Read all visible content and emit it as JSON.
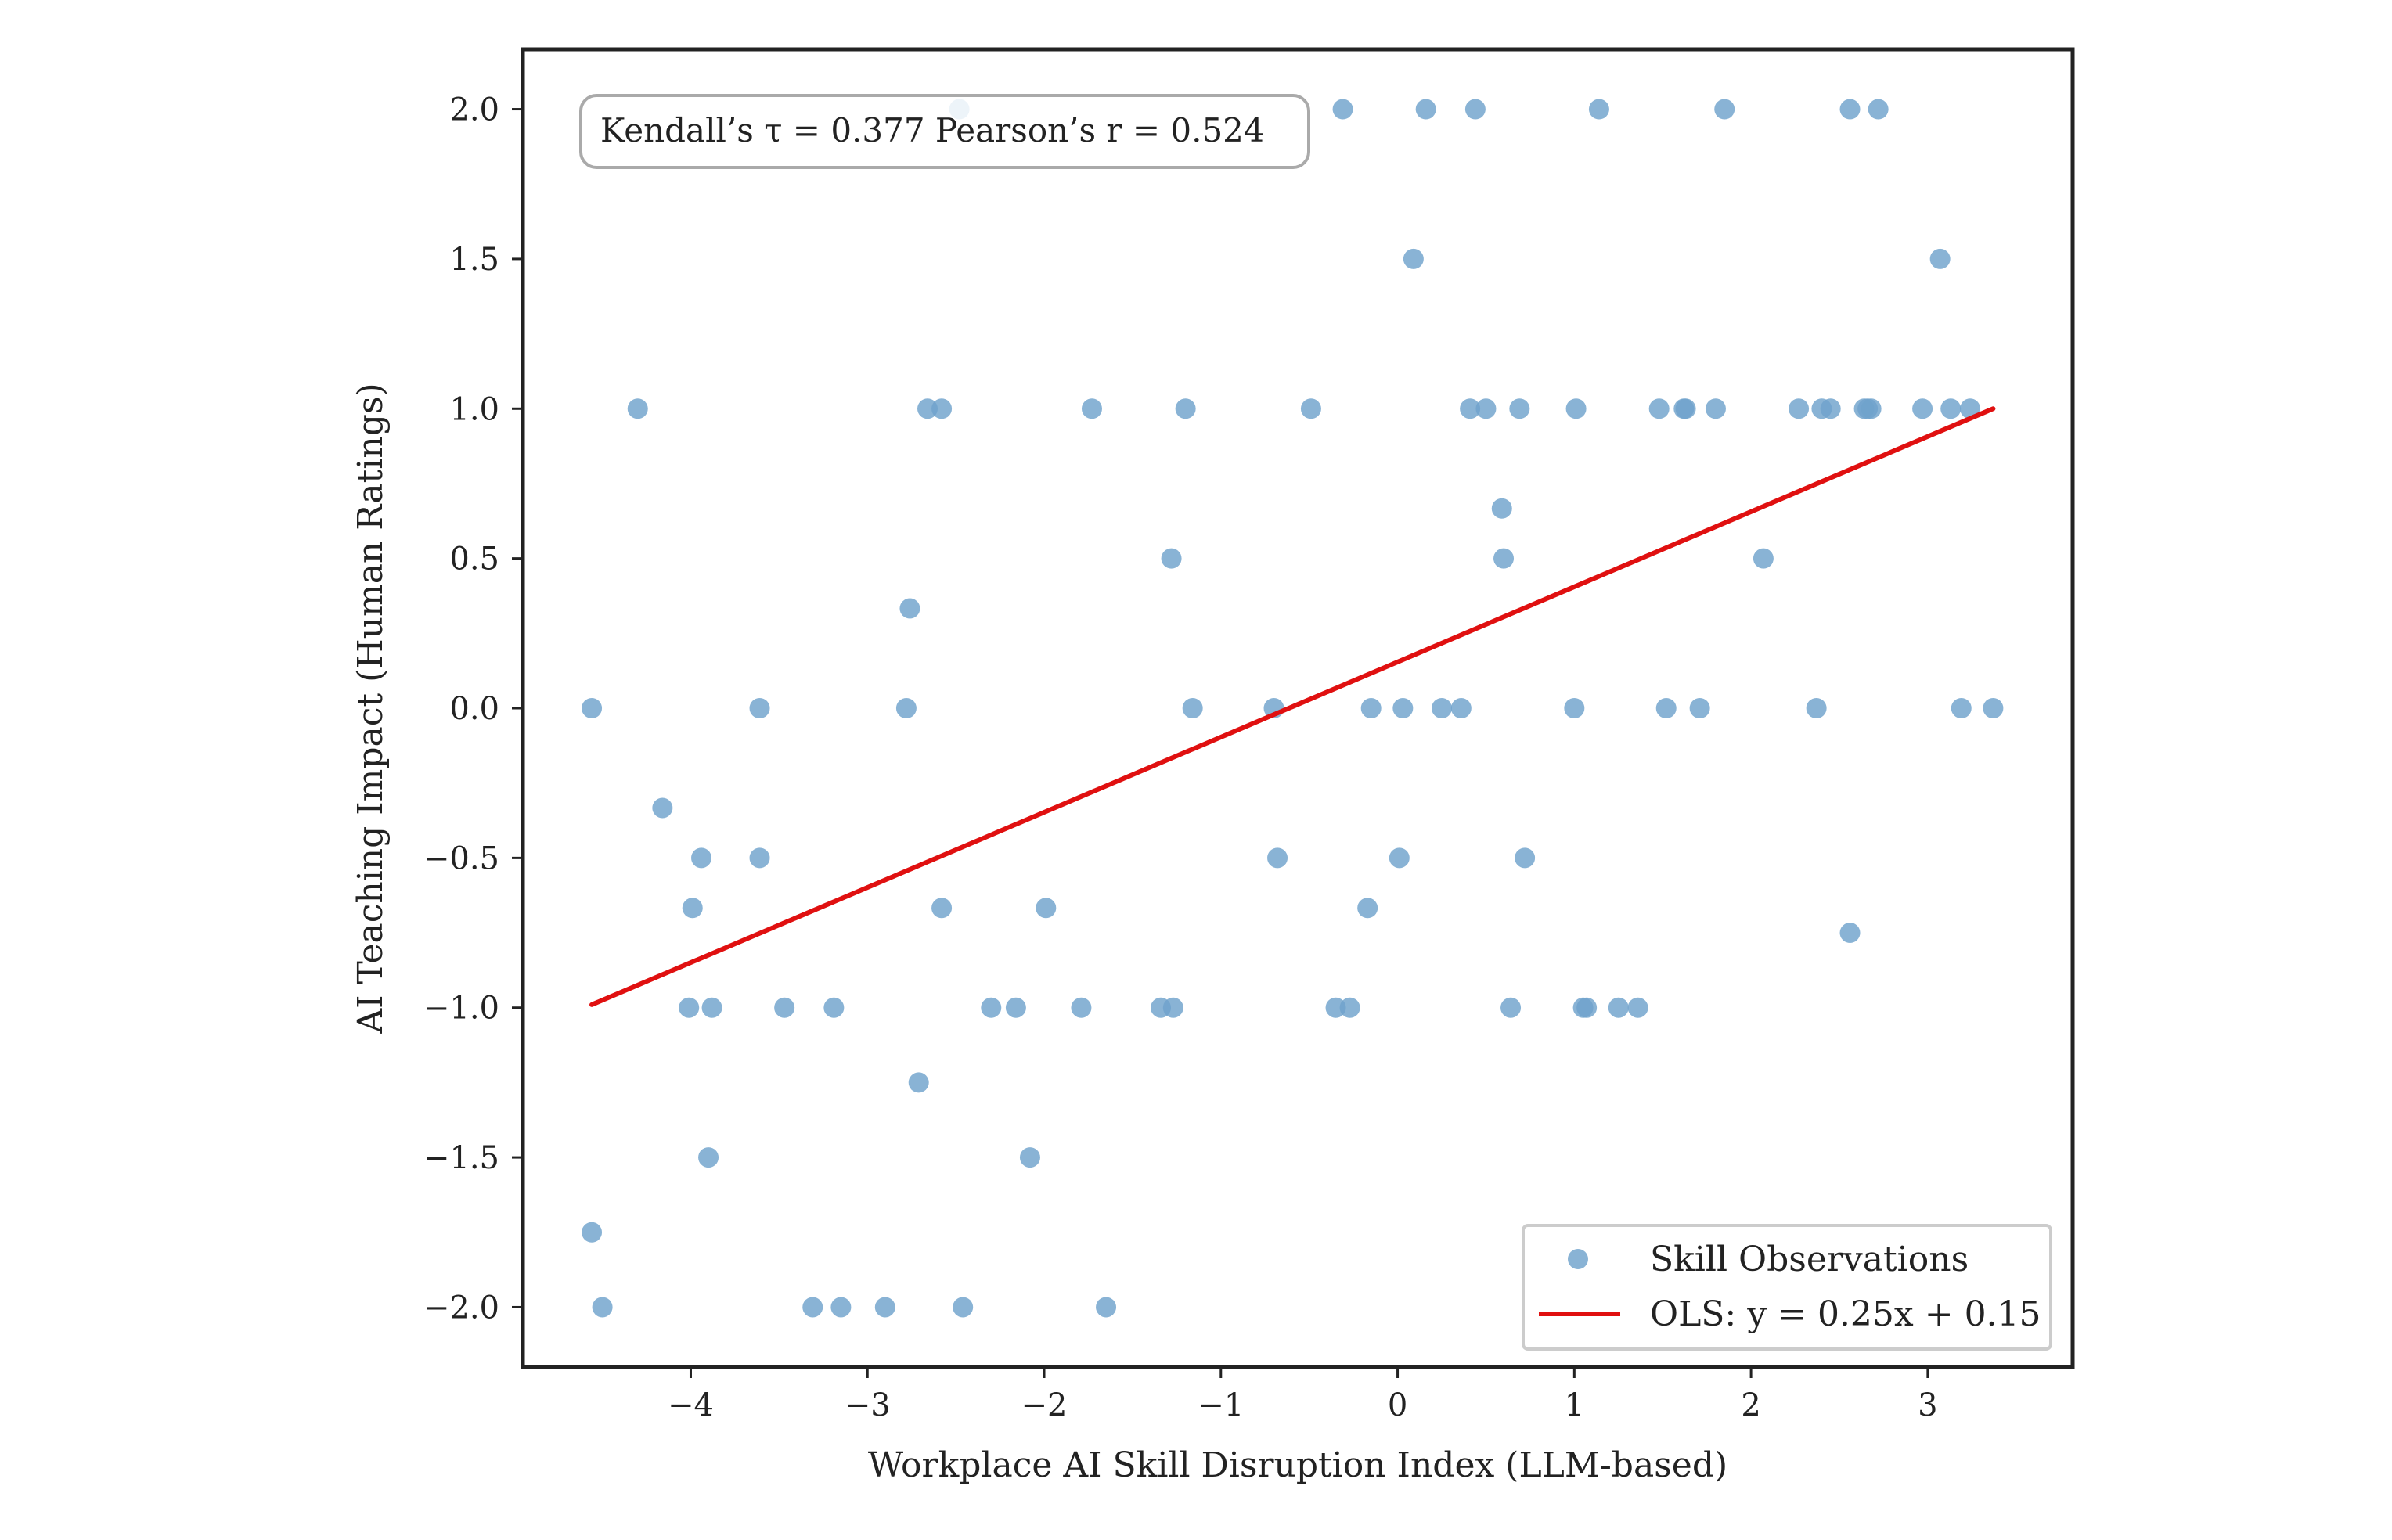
{
  "chart_data": {
    "type": "scatter",
    "xlabel": "Workplace AI Skill Disruption Index (LLM-based)",
    "ylabel": "AI Teaching Impact (Human Ratings)",
    "xlim": [
      -4.95,
      3.82
    ],
    "ylim": [
      -2.2,
      2.2
    ],
    "x_ticks": [
      -4,
      -3,
      -2,
      -1,
      0,
      1,
      2,
      3
    ],
    "x_tick_labels": [
      "−4",
      "−3",
      "−2",
      "−1",
      "0",
      "1",
      "2",
      "3"
    ],
    "y_ticks": [
      -2.0,
      -1.5,
      -1.0,
      -0.5,
      0.0,
      0.5,
      1.0,
      1.5,
      2.0
    ],
    "y_tick_labels": [
      "−2.0",
      "−1.5",
      "−1.0",
      "−0.5",
      "0.0",
      "0.5",
      "1.0",
      "1.5",
      "2.0"
    ],
    "grid": false,
    "annotation": "Kendall’s τ = 0.377 Pearson’s r = 0.524",
    "legend": {
      "placement": "bottom-right",
      "entries": [
        "Skill Observations",
        "OLS: y = 0.25x + 0.15"
      ]
    },
    "series": [
      {
        "name": "Skill Observations",
        "kind": "scatter",
        "color": "#6fa2cc",
        "points": [
          [
            -2.48,
            2.0
          ],
          [
            -0.31,
            2.0
          ],
          [
            0.16,
            2.0
          ],
          [
            0.44,
            2.0
          ],
          [
            1.14,
            2.0
          ],
          [
            1.85,
            2.0
          ],
          [
            2.56,
            2.0
          ],
          [
            2.72,
            2.0
          ],
          [
            0.09,
            1.5
          ],
          [
            3.07,
            1.5
          ],
          [
            -4.3,
            1.0
          ],
          [
            -2.66,
            1.0
          ],
          [
            -2.58,
            1.0
          ],
          [
            -1.73,
            1.0
          ],
          [
            -1.2,
            1.0
          ],
          [
            -0.49,
            1.0
          ],
          [
            0.41,
            1.0
          ],
          [
            0.5,
            1.0
          ],
          [
            0.69,
            1.0
          ],
          [
            1.01,
            1.0
          ],
          [
            1.48,
            1.0
          ],
          [
            1.62,
            1.0
          ],
          [
            1.63,
            1.0
          ],
          [
            1.8,
            1.0
          ],
          [
            2.27,
            1.0
          ],
          [
            2.4,
            1.0
          ],
          [
            2.45,
            1.0
          ],
          [
            2.64,
            1.0
          ],
          [
            2.66,
            1.0
          ],
          [
            2.68,
            1.0
          ],
          [
            2.97,
            1.0
          ],
          [
            3.13,
            1.0
          ],
          [
            3.24,
            1.0
          ],
          [
            0.59,
            0.667
          ],
          [
            -1.28,
            0.5
          ],
          [
            0.6,
            0.5
          ],
          [
            2.07,
            0.5
          ],
          [
            -2.76,
            0.333
          ],
          [
            -4.56,
            0.0
          ],
          [
            -3.61,
            0.0
          ],
          [
            -2.78,
            0.0
          ],
          [
            -1.16,
            0.0
          ],
          [
            -0.7,
            0.0
          ],
          [
            -0.15,
            0.0
          ],
          [
            0.03,
            0.0
          ],
          [
            0.25,
            0.0
          ],
          [
            0.36,
            0.0
          ],
          [
            1.0,
            0.0
          ],
          [
            1.52,
            0.0
          ],
          [
            1.71,
            0.0
          ],
          [
            2.37,
            0.0
          ],
          [
            3.19,
            0.0
          ],
          [
            3.37,
            0.0
          ],
          [
            -4.16,
            -0.333
          ],
          [
            -3.94,
            -0.5
          ],
          [
            -3.61,
            -0.5
          ],
          [
            -0.68,
            -0.5
          ],
          [
            0.01,
            -0.5
          ],
          [
            0.72,
            -0.5
          ],
          [
            -3.99,
            -0.667
          ],
          [
            -2.58,
            -0.667
          ],
          [
            -1.99,
            -0.667
          ],
          [
            -0.17,
            -0.667
          ],
          [
            2.56,
            -0.75
          ],
          [
            -4.01,
            -1.0
          ],
          [
            -3.88,
            -1.0
          ],
          [
            -3.47,
            -1.0
          ],
          [
            -3.19,
            -1.0
          ],
          [
            -2.3,
            -1.0
          ],
          [
            -2.16,
            -1.0
          ],
          [
            -1.79,
            -1.0
          ],
          [
            -1.34,
            -1.0
          ],
          [
            -1.27,
            -1.0
          ],
          [
            -0.35,
            -1.0
          ],
          [
            -0.27,
            -1.0
          ],
          [
            0.64,
            -1.0
          ],
          [
            1.05,
            -1.0
          ],
          [
            1.07,
            -1.0
          ],
          [
            1.25,
            -1.0
          ],
          [
            1.36,
            -1.0
          ],
          [
            -2.71,
            -1.25
          ],
          [
            -3.9,
            -1.5
          ],
          [
            -2.08,
            -1.5
          ],
          [
            -4.56,
            -1.75
          ],
          [
            -4.5,
            -2.0
          ],
          [
            -3.31,
            -2.0
          ],
          [
            -3.15,
            -2.0
          ],
          [
            -2.9,
            -2.0
          ],
          [
            -2.46,
            -2.0
          ],
          [
            -1.65,
            -2.0
          ]
        ]
      },
      {
        "name": "OLS: y = 0.25x + 0.15",
        "kind": "line",
        "color": "#e01010",
        "points": [
          [
            -4.56,
            -0.99
          ],
          [
            3.37,
            1.0
          ]
        ]
      }
    ]
  }
}
